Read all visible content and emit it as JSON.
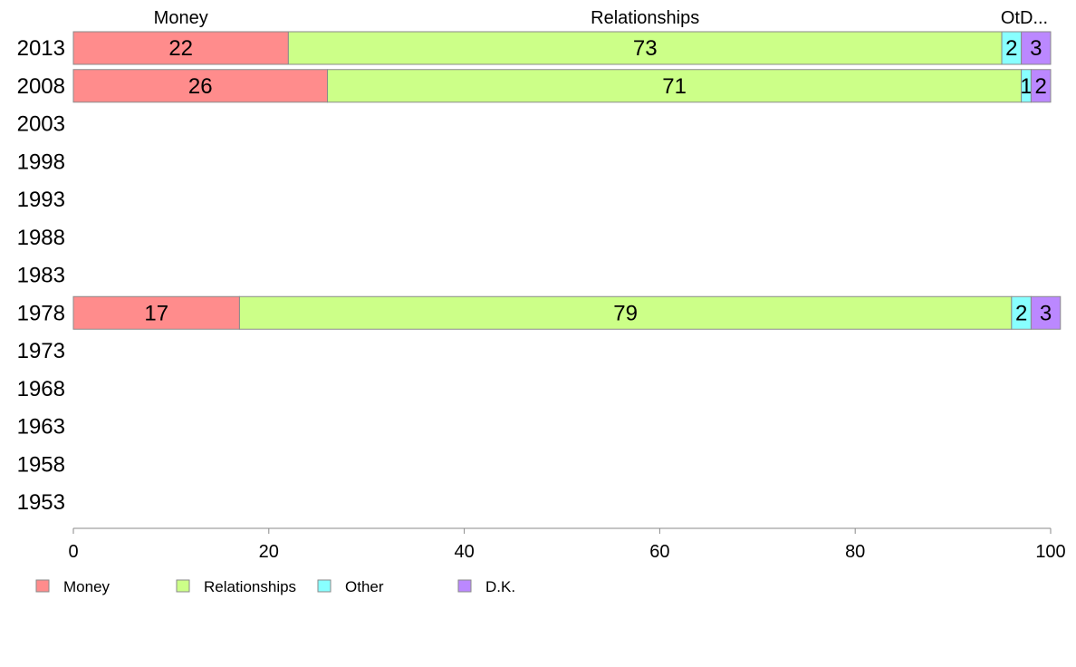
{
  "chart_data": {
    "type": "bar",
    "orientation": "horizontal",
    "stacked": true,
    "categories": [
      "2013",
      "2008",
      "2003",
      "1998",
      "1993",
      "1988",
      "1983",
      "1978",
      "1973",
      "1968",
      "1963",
      "1958",
      "1953"
    ],
    "series": [
      {
        "name": "Money",
        "color": "#FF8C8C",
        "values": [
          22,
          26,
          null,
          null,
          null,
          null,
          null,
          17,
          null,
          null,
          null,
          null,
          null
        ],
        "labels": [
          "22",
          "26",
          "",
          "",
          "",
          "",
          "",
          "17",
          "",
          "",
          "",
          "",
          ""
        ]
      },
      {
        "name": "Relationships",
        "color": "#CCFF88",
        "values": [
          73,
          71,
          null,
          null,
          null,
          null,
          null,
          79,
          null,
          null,
          null,
          null,
          null
        ],
        "labels": [
          "73",
          "71",
          "",
          "",
          "",
          "",
          "",
          "79",
          "",
          "",
          "",
          "",
          ""
        ]
      },
      {
        "name": "Other",
        "color": "#88FFFF",
        "values": [
          2,
          1,
          null,
          null,
          null,
          null,
          null,
          2,
          null,
          null,
          null,
          null,
          null
        ],
        "labels": [
          "2",
          "1",
          "",
          "",
          "",
          "",
          "",
          "2",
          "",
          "",
          "",
          "",
          ""
        ]
      },
      {
        "name": "D.K.",
        "color": "#BB88FF",
        "values": [
          3,
          2,
          null,
          null,
          null,
          null,
          null,
          3,
          null,
          null,
          null,
          null,
          null
        ],
        "labels": [
          "3",
          "2",
          "",
          "",
          "",
          "",
          "",
          "3",
          "",
          "",
          "",
          "",
          ""
        ]
      }
    ],
    "top_labels": [
      "Money",
      "Relationships",
      "Ot",
      "D..."
    ],
    "xlim": [
      0,
      100
    ],
    "xticks": [
      "0",
      "20",
      "40",
      "60",
      "80",
      "100"
    ],
    "title": "",
    "xlabel": "",
    "ylabel": "",
    "grid": false,
    "legend": "bottom-left"
  }
}
